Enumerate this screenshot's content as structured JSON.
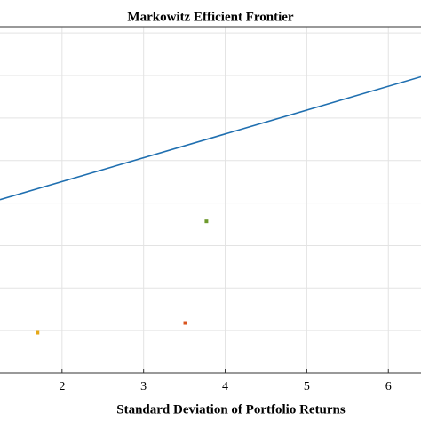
{
  "chart_data": {
    "type": "line",
    "title": "Markowitz Efficient Frontier",
    "x_label": "Standard Deviation of Portfolio Returns",
    "xlim": [
      1.24,
      6.4
    ],
    "xticks": [
      2,
      3,
      4,
      5,
      6
    ],
    "ylim": [
      0,
      8.15
    ],
    "yticks": [
      1,
      2,
      3,
      4,
      5,
      6,
      7,
      8
    ],
    "grid": true,
    "series": [
      {
        "color": "#1f6fb0",
        "x": [
          1.24,
          6.4
        ],
        "values": [
          4.08,
          6.97
        ]
      }
    ],
    "points": [
      {
        "color": "#e6a817",
        "x": 1.7,
        "y": 0.95
      },
      {
        "color": "#d9541e",
        "x": 3.51,
        "y": 1.18
      },
      {
        "color": "#6e9a2d",
        "x": 3.77,
        "y": 3.57
      }
    ]
  }
}
